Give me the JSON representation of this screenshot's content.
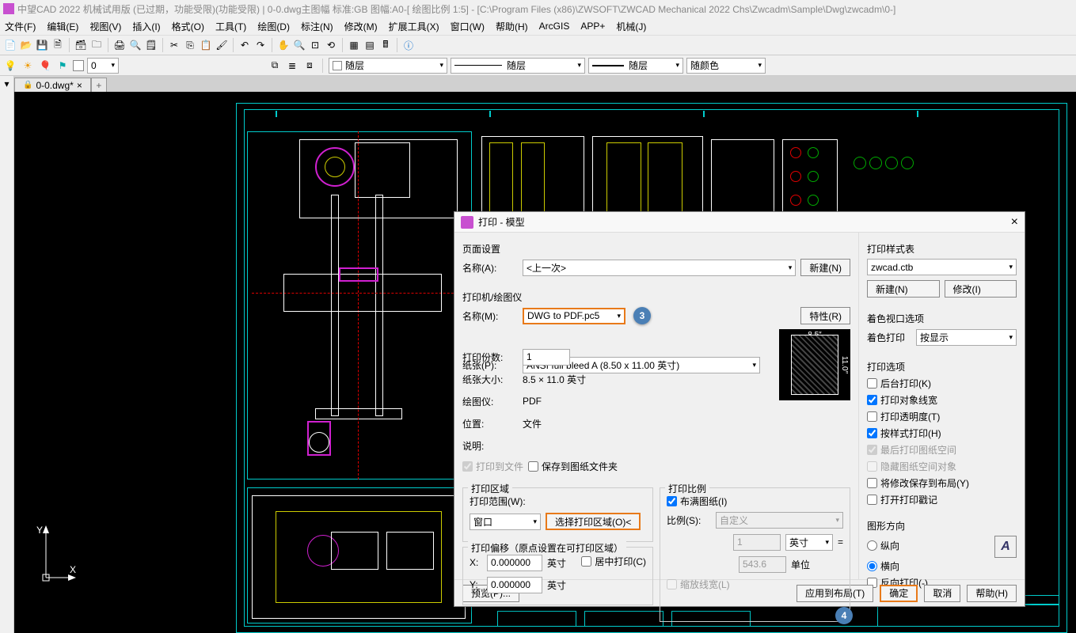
{
  "title": "中望CAD 2022 机械试用版 (已过期，功能受限)(功能受限) | 0-0.dwg主图幅  标准:GB 图幅:A0-[ 绘图比例 1:5] - [C:\\Program Files (x86)\\ZWSOFT\\ZWCAD Mechanical 2022 Chs\\Zwcadm\\Sample\\Dwg\\zwcadm\\0-]",
  "menu": [
    "文件(F)",
    "编辑(E)",
    "视图(V)",
    "插入(I)",
    "格式(O)",
    "工具(T)",
    "绘图(D)",
    "标注(N)",
    "修改(M)",
    "扩展工具(X)",
    "窗口(W)",
    "帮助(H)",
    "ArcGIS",
    "APP+",
    "机械(J)"
  ],
  "layerCombo1": "随层",
  "layerCombo2": "随层",
  "layerCombo3": "随层",
  "colorCombo": "随颜色",
  "layerSwatch1": "#ff0",
  "layerSwatch2": "#fff",
  "tab": {
    "name": "0-0.dwg*"
  },
  "dialog": {
    "title": "打印 - 模型",
    "pageSetup": {
      "group": "页面设置",
      "nameLabel": "名称(A):",
      "nameValue": "<上一次>",
      "newBtn": "新建(N)"
    },
    "printer": {
      "group": "打印机/绘图仪",
      "nameLabel": "名称(M):",
      "nameValue": "DWG to PDF.pc5",
      "propBtn": "特性(R)",
      "paperLabel": "纸张(P):",
      "paperValue": "ANSI full bleed A (8.50 x 11.00 英寸)",
      "copiesLabel": "打印份数:",
      "copiesValue": "1",
      "sizeLabel": "纸张大小:",
      "sizeValue": "8.5 × 11.0  英寸",
      "plotterLabel": "绘图仪:",
      "plotterValue": "PDF",
      "whereLabel": "位置:",
      "whereValue": "文件",
      "descLabel": "说明:",
      "toFile": "打印到文件",
      "saveFolder": "保存到图纸文件夹",
      "previewW": "8.5″",
      "previewH": "11.0″"
    },
    "area": {
      "group": "打印区域",
      "rangeLabel": "打印范围(W):",
      "rangeValue": "窗口",
      "pickBtn": "选择打印区域(O)<"
    },
    "offset": {
      "group": "打印偏移（原点设置在可打印区域）",
      "x": "X:",
      "y": "Y:",
      "xval": "0.000000",
      "yval": "0.000000",
      "unit": "英寸",
      "center": "居中打印(C)"
    },
    "scale": {
      "group": "打印比例",
      "fit": "布满图纸(I)",
      "ratioLabel": "比例(S):",
      "ratioValue": "自定义",
      "num": "1",
      "unit": "英寸",
      "eq": "=",
      "denom": "543.6",
      "unit2": "单位",
      "scaleLines": "缩放线宽(L)"
    },
    "styleTable": {
      "group": "打印样式表",
      "value": "zwcad.ctb",
      "newBtn": "新建(N)",
      "editBtn": "修改(I)"
    },
    "shaded": {
      "group": "着色视口选项",
      "label": "着色打印",
      "value": "按显示"
    },
    "options": {
      "group": "打印选项",
      "items": [
        {
          "label": "后台打印(K)",
          "checked": false,
          "disabled": false
        },
        {
          "label": "打印对象线宽",
          "checked": true,
          "disabled": false
        },
        {
          "label": "打印透明度(T)",
          "checked": false,
          "disabled": false
        },
        {
          "label": "按样式打印(H)",
          "checked": true,
          "disabled": false
        },
        {
          "label": "最后打印图纸空间",
          "checked": true,
          "disabled": true
        },
        {
          "label": "隐藏图纸空间对象",
          "checked": false,
          "disabled": true
        },
        {
          "label": "将修改保存到布局(Y)",
          "checked": false,
          "disabled": false
        },
        {
          "label": "打开打印戳记",
          "checked": false,
          "disabled": false
        }
      ]
    },
    "orient": {
      "group": "图形方向",
      "portrait": "纵向",
      "landscape": "横向",
      "reverse": "反向打印(-)",
      "selected": "landscape"
    },
    "footer": {
      "preview": "预览(P)...",
      "apply": "应用到布局(T)",
      "ok": "确定",
      "cancel": "取消",
      "help": "帮助(H)"
    },
    "badges": {
      "printerName": "3",
      "okBtn": "4"
    }
  },
  "colors": {
    "accent": "#e87a1a",
    "badgeBg": "#4a7fb5",
    "cyan": "#0cc",
    "magenta": "#d020d0",
    "yellow": "#cccc00",
    "red": "#d00",
    "green": "#0a0",
    "white": "#fff"
  }
}
